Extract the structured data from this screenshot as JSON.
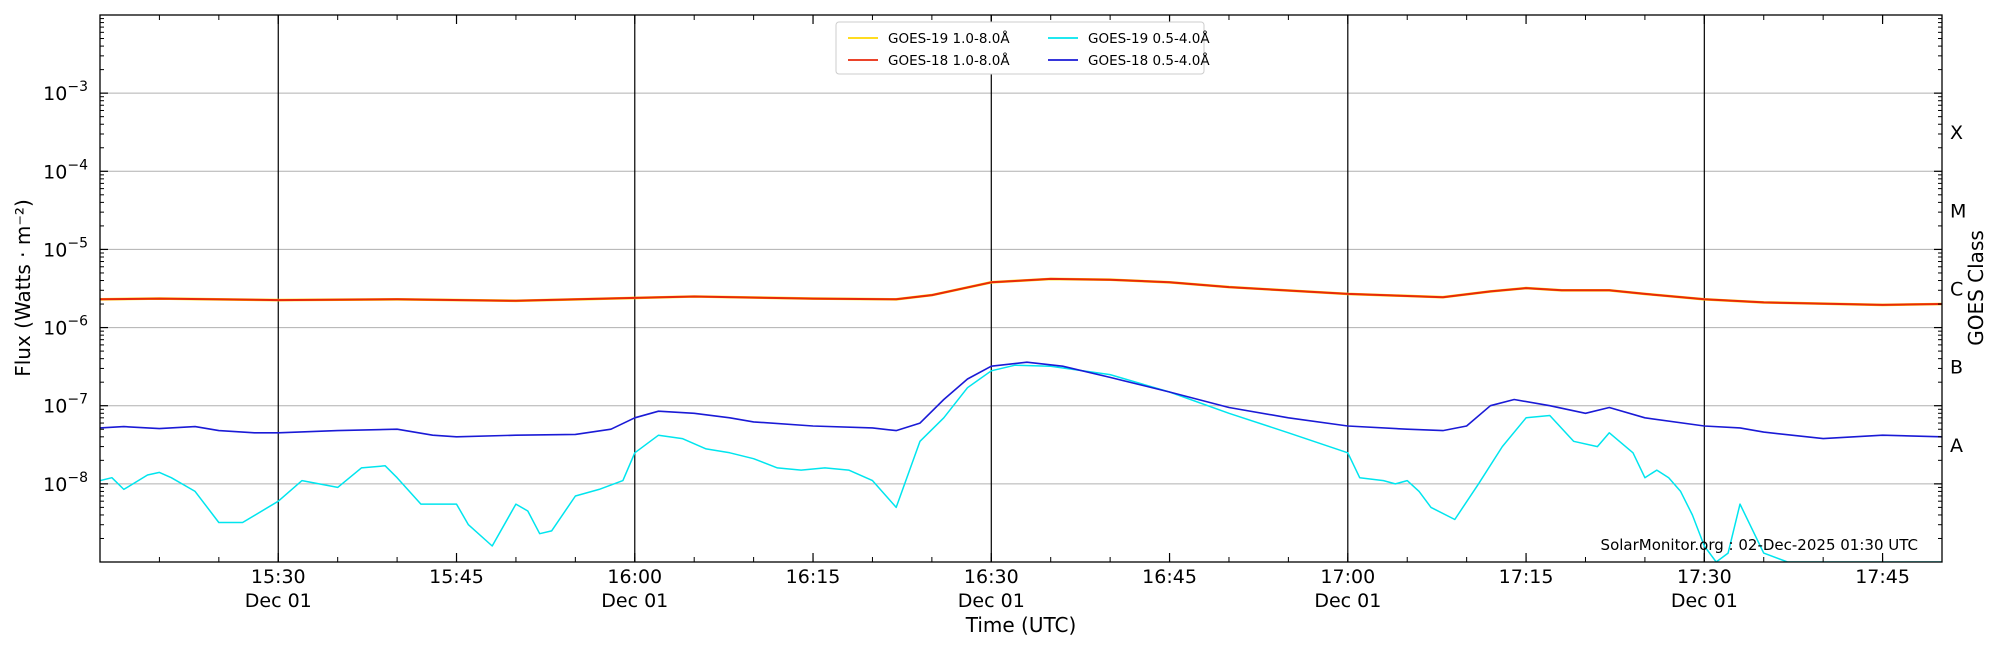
{
  "chart_data": {
    "type": "line",
    "xlabel": "Time (UTC)",
    "ylabel": "Flux (Watts · m⁻²)",
    "right_axis_label": "GOES Class",
    "watermark": "SolarMonitor.org : 02-Dec-2025 01:30 UTC",
    "y_scale": "log",
    "ylim": [
      1e-09,
      0.01
    ],
    "xlim": [
      "2025-12-01 15:15",
      "2025-12-01 17:50"
    ],
    "grid": "horizontal at decades; vertical lines every 30 min",
    "legend_position": "top-center",
    "x_ticks": [
      {
        "time": "2025-12-01 15:30",
        "label": "15:30",
        "date": "Dec 01"
      },
      {
        "time": "2025-12-01 15:45",
        "label": "15:45",
        "date": ""
      },
      {
        "time": "2025-12-01 16:00",
        "label": "16:00",
        "date": "Dec 01"
      },
      {
        "time": "2025-12-01 16:15",
        "label": "16:15",
        "date": ""
      },
      {
        "time": "2025-12-01 16:30",
        "label": "16:30",
        "date": "Dec 01"
      },
      {
        "time": "2025-12-01 16:45",
        "label": "16:45",
        "date": ""
      },
      {
        "time": "2025-12-01 17:00",
        "label": "17:00",
        "date": "Dec 01"
      },
      {
        "time": "2025-12-01 17:15",
        "label": "17:15",
        "date": ""
      },
      {
        "time": "2025-12-01 17:30",
        "label": "17:30",
        "date": "Dec 01"
      },
      {
        "time": "2025-12-01 17:45",
        "label": "17:45",
        "date": ""
      }
    ],
    "vlines": [
      "2025-12-01 15:30",
      "2025-12-01 16:00",
      "2025-12-01 16:30",
      "2025-12-01 17:00",
      "2025-12-01 17:30"
    ],
    "y_ticks": [
      {
        "value": 1e-08,
        "base": "10",
        "exp": "−8"
      },
      {
        "value": 1e-07,
        "base": "10",
        "exp": "−7"
      },
      {
        "value": 1e-06,
        "base": "10",
        "exp": "−6"
      },
      {
        "value": 1e-05,
        "base": "10",
        "exp": "−5"
      },
      {
        "value": 0.0001,
        "base": "10",
        "exp": "−4"
      },
      {
        "value": 0.001,
        "base": "10",
        "exp": "−3"
      }
    ],
    "goes_classes": [
      {
        "label": "A",
        "center": 3.16e-08
      },
      {
        "label": "B",
        "center": 3.16e-07
      },
      {
        "label": "C",
        "center": 3.16e-06
      },
      {
        "label": "M",
        "center": 3.16e-05
      },
      {
        "label": "X",
        "center": 0.000316
      }
    ],
    "series": [
      {
        "name": "GOES-19 1.0-8.0Å",
        "color": "#ffd700",
        "x": [
          "2025-12-01 15:15",
          "2025-12-01 15:20",
          "2025-12-01 15:30",
          "2025-12-01 15:40",
          "2025-12-01 15:50",
          "2025-12-01 16:00",
          "2025-12-01 16:05",
          "2025-12-01 16:15",
          "2025-12-01 16:22",
          "2025-12-01 16:25",
          "2025-12-01 16:30",
          "2025-12-01 16:35",
          "2025-12-01 16:40",
          "2025-12-01 16:45",
          "2025-12-01 16:50",
          "2025-12-01 17:00",
          "2025-12-01 17:08",
          "2025-12-01 17:12",
          "2025-12-01 17:15",
          "2025-12-01 17:18",
          "2025-12-01 17:22",
          "2025-12-01 17:25",
          "2025-12-01 17:30",
          "2025-12-01 17:35",
          "2025-12-01 17:45",
          "2025-12-01 17:50"
        ],
        "y": [
          2.3e-06,
          2.35e-06,
          2.25e-06,
          2.3e-06,
          2.2e-06,
          2.4e-06,
          2.5e-06,
          2.35e-06,
          2.3e-06,
          2.6e-06,
          3.8e-06,
          4.2e-06,
          4.1e-06,
          3.8e-06,
          3.3e-06,
          2.7e-06,
          2.45e-06,
          2.9e-06,
          3.2e-06,
          3e-06,
          3e-06,
          2.7e-06,
          2.3e-06,
          2.1e-06,
          1.95e-06,
          2e-06
        ]
      },
      {
        "name": "GOES-18 1.0-8.0Å",
        "color": "#e8280c",
        "x": [
          "2025-12-01 15:15",
          "2025-12-01 15:20",
          "2025-12-01 15:30",
          "2025-12-01 15:40",
          "2025-12-01 15:50",
          "2025-12-01 16:00",
          "2025-12-01 16:05",
          "2025-12-01 16:15",
          "2025-12-01 16:22",
          "2025-12-01 16:25",
          "2025-12-01 16:30",
          "2025-12-01 16:35",
          "2025-12-01 16:40",
          "2025-12-01 16:45",
          "2025-12-01 16:50",
          "2025-12-01 17:00",
          "2025-12-01 17:08",
          "2025-12-01 17:12",
          "2025-12-01 17:15",
          "2025-12-01 17:18",
          "2025-12-01 17:22",
          "2025-12-01 17:25",
          "2025-12-01 17:30",
          "2025-12-01 17:35",
          "2025-12-01 17:45",
          "2025-12-01 17:50"
        ],
        "y": [
          2.3e-06,
          2.35e-06,
          2.25e-06,
          2.3e-06,
          2.2e-06,
          2.4e-06,
          2.5e-06,
          2.35e-06,
          2.3e-06,
          2.6e-06,
          3.8e-06,
          4.2e-06,
          4.1e-06,
          3.8e-06,
          3.3e-06,
          2.7e-06,
          2.45e-06,
          2.9e-06,
          3.2e-06,
          3e-06,
          3e-06,
          2.7e-06,
          2.3e-06,
          2.1e-06,
          1.95e-06,
          2e-06
        ]
      },
      {
        "name": "GOES-19 0.5-4.0Å",
        "color": "#00e5ee",
        "x": [
          "2025-12-01 15:15",
          "2025-12-01 15:16",
          "2025-12-01 15:17",
          "2025-12-01 15:19",
          "2025-12-01 15:20",
          "2025-12-01 15:21",
          "2025-12-01 15:23",
          "2025-12-01 15:25",
          "2025-12-01 15:27",
          "2025-12-01 15:30",
          "2025-12-01 15:32",
          "2025-12-01 15:35",
          "2025-12-01 15:37",
          "2025-12-01 15:39",
          "2025-12-01 15:40",
          "2025-12-01 15:42",
          "2025-12-01 15:45",
          "2025-12-01 15:46",
          "2025-12-01 15:48",
          "2025-12-01 15:50",
          "2025-12-01 15:51",
          "2025-12-01 15:52",
          "2025-12-01 15:53",
          "2025-12-01 15:55",
          "2025-12-01 15:57",
          "2025-12-01 15:59",
          "2025-12-01 16:00",
          "2025-12-01 16:02",
          "2025-12-01 16:04",
          "2025-12-01 16:06",
          "2025-12-01 16:08",
          "2025-12-01 16:10",
          "2025-12-01 16:12",
          "2025-12-01 16:14",
          "2025-12-01 16:16",
          "2025-12-01 16:18",
          "2025-12-01 16:20",
          "2025-12-01 16:22",
          "2025-12-01 16:24",
          "2025-12-01 16:26",
          "2025-12-01 16:28",
          "2025-12-01 16:30",
          "2025-12-01 16:32",
          "2025-12-01 16:35",
          "2025-12-01 16:40",
          "2025-12-01 16:45",
          "2025-12-01 16:50",
          "2025-12-01 16:55",
          "2025-12-01 17:00",
          "2025-12-01 17:01",
          "2025-12-01 17:03",
          "2025-12-01 17:04",
          "2025-12-01 17:05",
          "2025-12-01 17:06",
          "2025-12-01 17:07",
          "2025-12-01 17:09",
          "2025-12-01 17:11",
          "2025-12-01 17:13",
          "2025-12-01 17:15",
          "2025-12-01 17:17",
          "2025-12-01 17:19",
          "2025-12-01 17:21",
          "2025-12-01 17:22",
          "2025-12-01 17:24",
          "2025-12-01 17:25",
          "2025-12-01 17:26",
          "2025-12-01 17:27",
          "2025-12-01 17:28",
          "2025-12-01 17:29",
          "2025-12-01 17:30",
          "2025-12-01 17:31",
          "2025-12-01 17:32",
          "2025-12-01 17:33",
          "2025-12-01 17:35",
          "2025-12-01 17:37",
          "2025-12-01 17:40",
          "2025-12-01 17:45",
          "2025-12-01 17:50"
        ],
        "y": [
          1.1e-08,
          1.2e-08,
          8.5e-09,
          1.3e-08,
          1.4e-08,
          1.2e-08,
          8e-09,
          3.2e-09,
          3.2e-09,
          6e-09,
          1.1e-08,
          9e-09,
          1.6e-08,
          1.7e-08,
          1.2e-08,
          5.5e-09,
          5.5e-09,
          3e-09,
          1.6e-09,
          5.5e-09,
          4.5e-09,
          2.3e-09,
          2.5e-09,
          7e-09,
          8.5e-09,
          1.1e-08,
          2.5e-08,
          4.2e-08,
          3.8e-08,
          2.8e-08,
          2.5e-08,
          2.1e-08,
          1.6e-08,
          1.5e-08,
          1.6e-08,
          1.5e-08,
          1.1e-08,
          5e-09,
          3.5e-08,
          7e-08,
          1.7e-07,
          2.8e-07,
          3.3e-07,
          3.2e-07,
          2.5e-07,
          1.5e-07,
          8e-08,
          4.5e-08,
          2.5e-08,
          1.2e-08,
          1.1e-08,
          1e-08,
          1.1e-08,
          8e-09,
          5e-09,
          3.5e-09,
          1e-08,
          3e-08,
          7e-08,
          7.5e-08,
          3.5e-08,
          3e-08,
          4.5e-08,
          2.5e-08,
          1.2e-08,
          1.5e-08,
          1.2e-08,
          8e-09,
          4e-09,
          1.6e-09,
          1e-09,
          1.3e-09,
          5.5e-09,
          1.3e-09,
          1e-09,
          1e-09,
          1e-09,
          1e-09
        ]
      },
      {
        "name": "GOES-18 0.5-4.0Å",
        "color": "#1a1ad6",
        "x": [
          "2025-12-01 15:15",
          "2025-12-01 15:17",
          "2025-12-01 15:20",
          "2025-12-01 15:23",
          "2025-12-01 15:25",
          "2025-12-01 15:28",
          "2025-12-01 15:30",
          "2025-12-01 15:35",
          "2025-12-01 15:40",
          "2025-12-01 15:43",
          "2025-12-01 15:45",
          "2025-12-01 15:50",
          "2025-12-01 15:55",
          "2025-12-01 15:58",
          "2025-12-01 16:00",
          "2025-12-01 16:02",
          "2025-12-01 16:05",
          "2025-12-01 16:08",
          "2025-12-01 16:10",
          "2025-12-01 16:15",
          "2025-12-01 16:20",
          "2025-12-01 16:22",
          "2025-12-01 16:24",
          "2025-12-01 16:26",
          "2025-12-01 16:28",
          "2025-12-01 16:30",
          "2025-12-01 16:33",
          "2025-12-01 16:36",
          "2025-12-01 16:40",
          "2025-12-01 16:45",
          "2025-12-01 16:50",
          "2025-12-01 16:55",
          "2025-12-01 17:00",
          "2025-12-01 17:05",
          "2025-12-01 17:08",
          "2025-12-01 17:10",
          "2025-12-01 17:12",
          "2025-12-01 17:14",
          "2025-12-01 17:17",
          "2025-12-01 17:20",
          "2025-12-01 17:22",
          "2025-12-01 17:25",
          "2025-12-01 17:30",
          "2025-12-01 17:33",
          "2025-12-01 17:35",
          "2025-12-01 17:40",
          "2025-12-01 17:45",
          "2025-12-01 17:50"
        ],
        "y": [
          5.2e-08,
          5.4e-08,
          5.1e-08,
          5.4e-08,
          4.8e-08,
          4.5e-08,
          4.5e-08,
          4.8e-08,
          5e-08,
          4.2e-08,
          4e-08,
          4.2e-08,
          4.3e-08,
          5e-08,
          7e-08,
          8.5e-08,
          8e-08,
          7e-08,
          6.2e-08,
          5.5e-08,
          5.2e-08,
          4.8e-08,
          6e-08,
          1.2e-07,
          2.2e-07,
          3.2e-07,
          3.6e-07,
          3.2e-07,
          2.3e-07,
          1.5e-07,
          9.5e-08,
          7e-08,
          5.5e-08,
          5e-08,
          4.8e-08,
          5.5e-08,
          1e-07,
          1.2e-07,
          1e-07,
          8e-08,
          9.5e-08,
          7e-08,
          5.5e-08,
          5.2e-08,
          4.6e-08,
          3.8e-08,
          4.2e-08,
          4e-08
        ]
      }
    ]
  }
}
